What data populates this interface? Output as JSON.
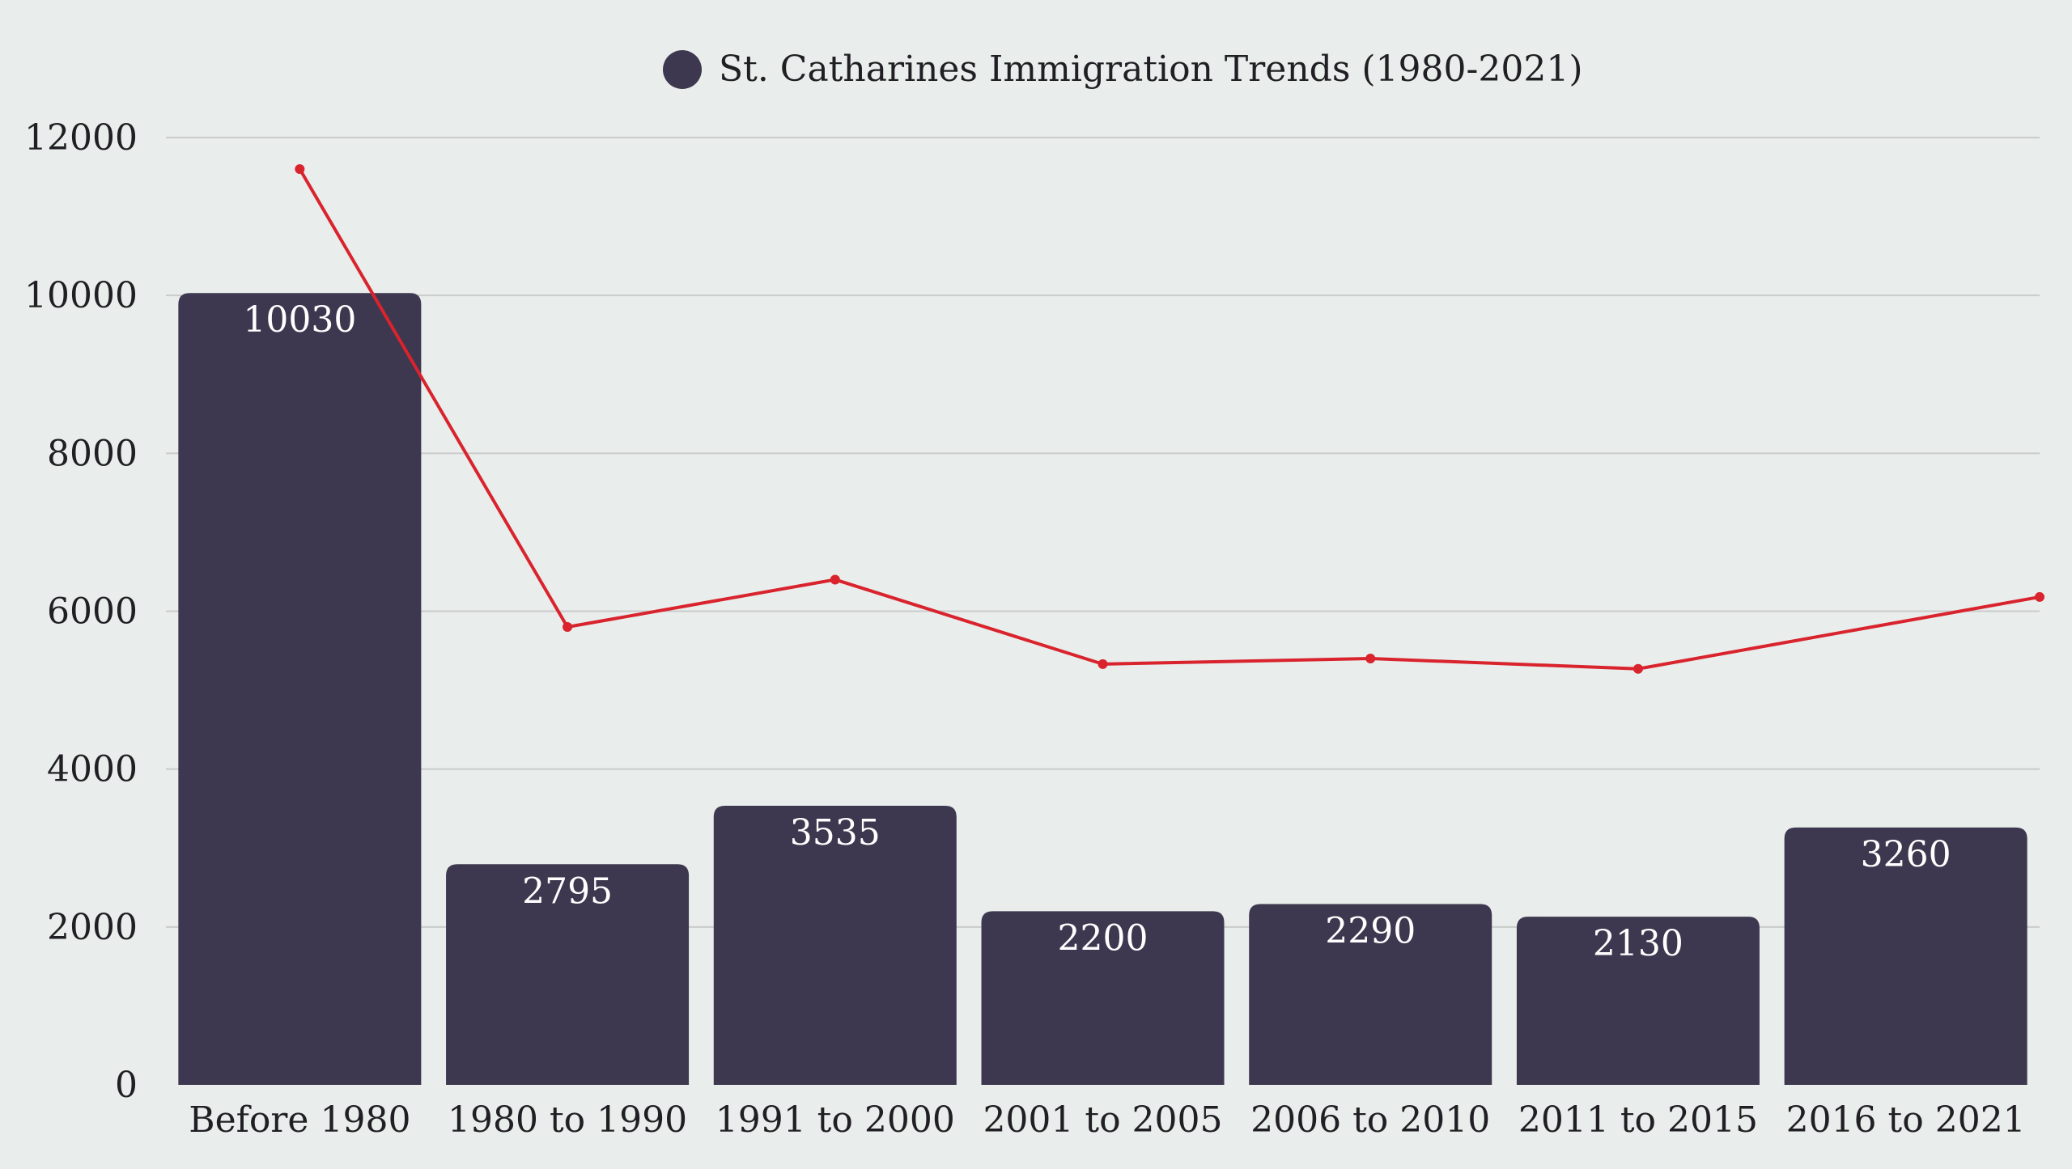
{
  "chart_data": {
    "type": "bar",
    "categories": [
      "Before 1980",
      "1980 to 1990",
      "1991 to 2000",
      "2001 to 2005",
      "2006 to 2010",
      "2011 to 2015",
      "2016 to 2021"
    ],
    "series": [
      {
        "name": "St. Catharines Immigration Trends (1980-2021)",
        "type": "bar",
        "color": "#3d384f",
        "values": [
          10030,
          2795,
          3535,
          2200,
          2290,
          2130,
          3260
        ],
        "data_labels": [
          "10030",
          "2795",
          "3535",
          "2200",
          "2290",
          "2130",
          "3260"
        ]
      },
      {
        "type": "line",
        "color": "#d9232d",
        "values": [
          11600,
          5800,
          6400,
          5330,
          5400,
          5270,
          6180
        ]
      }
    ],
    "ylim": [
      0,
      12000
    ],
    "y_ticks": [
      "0",
      "2000",
      "4000",
      "6000",
      "8000",
      "10000",
      "12000"
    ],
    "grid": "horizontal",
    "legend": "top-center",
    "xlabel": "",
    "ylabel": ""
  }
}
